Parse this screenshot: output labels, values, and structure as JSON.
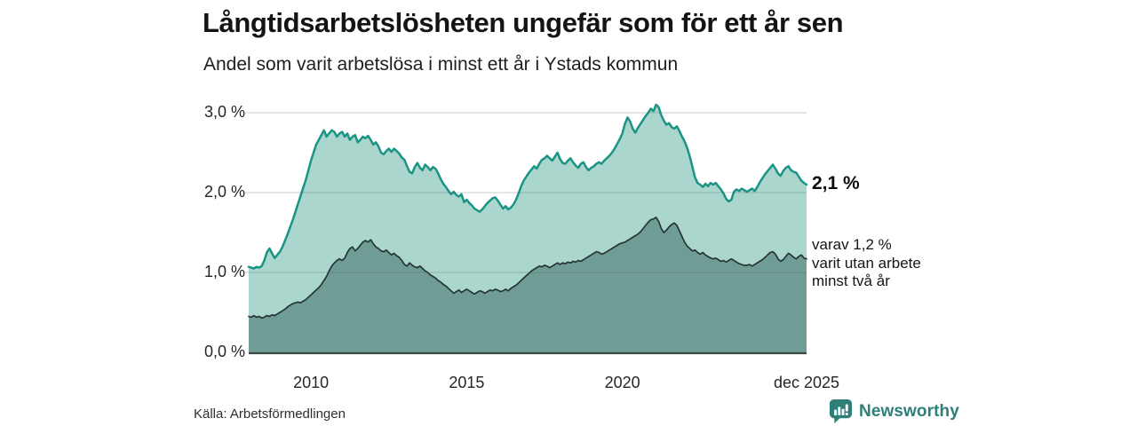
{
  "header": {
    "title": "Långtidsarbetslösheten ungefär som för ett år sen",
    "subtitle": "Andel som varit arbetslösa i minst ett år i Ystads kommun"
  },
  "chart_data": {
    "type": "area",
    "title": "Långtidsarbetslösheten ungefär som för ett år sen",
    "subtitle": "Andel som varit arbetslösa i minst ett år i Ystads kommun",
    "unit": "%",
    "grid": "horizontal",
    "x_axis": {
      "range_years": [
        2008.0,
        2025.9167
      ],
      "ticks": [
        {
          "label": "2010",
          "t": 2010
        },
        {
          "label": "2015",
          "t": 2015
        },
        {
          "label": "2020",
          "t": 2020
        },
        {
          "label": "dec 2025",
          "t": 2025.9167
        }
      ]
    },
    "y_axis": {
      "range": [
        0,
        3.25
      ],
      "gridline_values": [
        1,
        2,
        3
      ],
      "ticks": [
        {
          "label": "3,0 %",
          "value": 3
        },
        {
          "label": "2,0 %",
          "value": 2
        },
        {
          "label": "1,0 %",
          "value": 1
        },
        {
          "label": "0,0 %",
          "value": 0
        }
      ]
    },
    "series": [
      {
        "name": "Andel som varit arbetslösa minst ett år",
        "line_color": "#1a9484",
        "fill_color": "#abd6ce",
        "line_width": 2.5,
        "start_year": 2008,
        "step_months": 1,
        "latest_value": 2.1,
        "values": [
          1.07,
          1.06,
          1.05,
          1.07,
          1.06,
          1.08,
          1.15,
          1.25,
          1.3,
          1.24,
          1.18,
          1.22,
          1.26,
          1.32,
          1.4,
          1.48,
          1.57,
          1.66,
          1.76,
          1.86,
          1.96,
          2.06,
          2.16,
          2.28,
          2.4,
          2.5,
          2.6,
          2.66,
          2.72,
          2.78,
          2.7,
          2.74,
          2.78,
          2.76,
          2.7,
          2.74,
          2.76,
          2.7,
          2.74,
          2.66,
          2.7,
          2.72,
          2.63,
          2.66,
          2.7,
          2.68,
          2.71,
          2.66,
          2.6,
          2.63,
          2.58,
          2.5,
          2.48,
          2.52,
          2.55,
          2.51,
          2.55,
          2.52,
          2.49,
          2.44,
          2.41,
          2.33,
          2.26,
          2.24,
          2.32,
          2.37,
          2.31,
          2.28,
          2.35,
          2.32,
          2.28,
          2.32,
          2.3,
          2.24,
          2.17,
          2.11,
          2.07,
          2.02,
          1.98,
          2.01,
          1.97,
          1.95,
          1.98,
          1.88,
          1.91,
          1.87,
          1.84,
          1.8,
          1.78,
          1.76,
          1.79,
          1.83,
          1.87,
          1.9,
          1.93,
          1.94,
          1.9,
          1.85,
          1.8,
          1.83,
          1.79,
          1.81,
          1.85,
          1.91,
          1.99,
          2.08,
          2.15,
          2.2,
          2.25,
          2.29,
          2.33,
          2.3,
          2.36,
          2.41,
          2.43,
          2.46,
          2.43,
          2.4,
          2.45,
          2.5,
          2.42,
          2.37,
          2.36,
          2.4,
          2.43,
          2.38,
          2.34,
          2.31,
          2.36,
          2.38,
          2.32,
          2.28,
          2.31,
          2.33,
          2.36,
          2.38,
          2.36,
          2.4,
          2.43,
          2.46,
          2.5,
          2.55,
          2.61,
          2.67,
          2.74,
          2.86,
          2.94,
          2.89,
          2.8,
          2.75,
          2.81,
          2.86,
          2.91,
          2.96,
          3.0,
          3.05,
          3.02,
          3.1,
          3.07,
          2.97,
          2.9,
          2.85,
          2.87,
          2.82,
          2.8,
          2.83,
          2.77,
          2.7,
          2.64,
          2.56,
          2.45,
          2.32,
          2.19,
          2.12,
          2.1,
          2.07,
          2.11,
          2.08,
          2.12,
          2.1,
          2.12,
          2.08,
          2.04,
          1.99,
          1.92,
          1.89,
          1.91,
          2.01,
          2.04,
          2.02,
          2.05,
          2.03,
          2.01,
          2.03,
          2.05,
          2.02,
          2.07,
          2.13,
          2.18,
          2.23,
          2.27,
          2.31,
          2.35,
          2.3,
          2.24,
          2.21,
          2.27,
          2.31,
          2.33,
          2.28,
          2.26,
          2.25,
          2.2,
          2.15,
          2.12,
          2.1
        ]
      },
      {
        "name": "varav utan arbete minst två år",
        "line_color": "#263634",
        "fill_color": "#6f9c94",
        "line_width": 1.7,
        "start_year": 2008,
        "step_months": 1,
        "latest_value": 1.2,
        "values": [
          0.45,
          0.44,
          0.46,
          0.44,
          0.45,
          0.43,
          0.44,
          0.46,
          0.45,
          0.47,
          0.46,
          0.48,
          0.5,
          0.52,
          0.54,
          0.57,
          0.59,
          0.61,
          0.62,
          0.63,
          0.62,
          0.64,
          0.66,
          0.69,
          0.72,
          0.75,
          0.78,
          0.81,
          0.85,
          0.9,
          0.95,
          1.02,
          1.08,
          1.12,
          1.15,
          1.17,
          1.15,
          1.18,
          1.25,
          1.3,
          1.32,
          1.27,
          1.3,
          1.34,
          1.38,
          1.4,
          1.38,
          1.41,
          1.36,
          1.32,
          1.3,
          1.27,
          1.26,
          1.28,
          1.25,
          1.22,
          1.24,
          1.21,
          1.19,
          1.15,
          1.1,
          1.08,
          1.12,
          1.09,
          1.07,
          1.06,
          1.08,
          1.05,
          1.02,
          1.0,
          0.97,
          0.95,
          0.93,
          0.9,
          0.88,
          0.85,
          0.83,
          0.8,
          0.77,
          0.74,
          0.76,
          0.78,
          0.75,
          0.77,
          0.79,
          0.77,
          0.75,
          0.73,
          0.75,
          0.77,
          0.76,
          0.74,
          0.76,
          0.78,
          0.77,
          0.79,
          0.78,
          0.76,
          0.77,
          0.79,
          0.77,
          0.8,
          0.82,
          0.84,
          0.87,
          0.9,
          0.93,
          0.96,
          0.99,
          1.02,
          1.04,
          1.06,
          1.08,
          1.07,
          1.09,
          1.08,
          1.06,
          1.08,
          1.1,
          1.12,
          1.1,
          1.12,
          1.11,
          1.13,
          1.12,
          1.14,
          1.13,
          1.15,
          1.14,
          1.16,
          1.18,
          1.2,
          1.22,
          1.24,
          1.26,
          1.25,
          1.23,
          1.24,
          1.26,
          1.28,
          1.3,
          1.32,
          1.34,
          1.36,
          1.37,
          1.38,
          1.4,
          1.42,
          1.44,
          1.46,
          1.48,
          1.51,
          1.55,
          1.59,
          1.63,
          1.66,
          1.67,
          1.69,
          1.64,
          1.55,
          1.5,
          1.53,
          1.57,
          1.6,
          1.62,
          1.59,
          1.52,
          1.45,
          1.38,
          1.33,
          1.3,
          1.27,
          1.28,
          1.25,
          1.23,
          1.25,
          1.22,
          1.2,
          1.18,
          1.17,
          1.18,
          1.16,
          1.14,
          1.15,
          1.13,
          1.15,
          1.17,
          1.15,
          1.13,
          1.11,
          1.1,
          1.09,
          1.09,
          1.1,
          1.08,
          1.1,
          1.12,
          1.14,
          1.16,
          1.19,
          1.22,
          1.25,
          1.26,
          1.23,
          1.17,
          1.14,
          1.16,
          1.2,
          1.24,
          1.22,
          1.19,
          1.17,
          1.2,
          1.22,
          1.18,
          1.17
        ]
      }
    ],
    "annotations": {
      "latest_value_label": "2,1 %",
      "secondary_label": "varav 1,2 %\nvarit utan arbete\nminst två år"
    },
    "colors": {
      "gridline": "#d9d9d9",
      "baseline": "#3d4744",
      "brand_teal": "#2d7f78"
    }
  },
  "footer": {
    "source": "Källa: Arbetsförmedlingen",
    "brand": "Newsworthy"
  }
}
